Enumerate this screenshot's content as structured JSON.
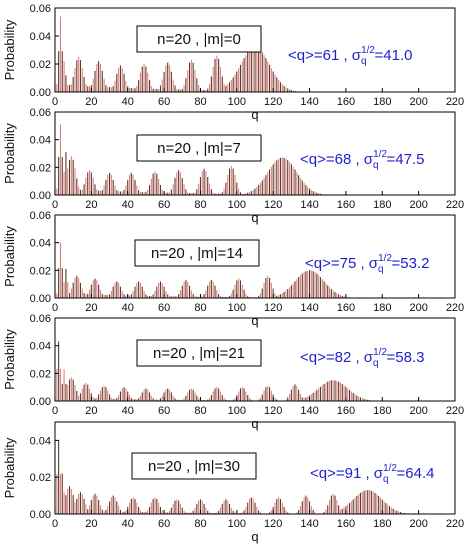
{
  "chart_data": [
    {
      "type": "bar",
      "ylabel": "Probability",
      "xlabel": "q",
      "label": "n=20 , |m|=0",
      "stat": {
        "mean_text": "<q>=61 , σ",
        "sigma_exp": "1/2",
        "sigma_sub": "q",
        "sigma_val": "=41.0"
      },
      "xlim": [
        0,
        220
      ],
      "ylim": [
        0,
        0.06
      ],
      "xticks": [
        "0",
        "20",
        "40",
        "60",
        "80",
        "100",
        "120",
        "140",
        "160",
        "180",
        "200",
        "220"
      ],
      "yticks": [
        "0.00",
        "0.02",
        "0.04",
        "0.06"
      ],
      "peaks": [
        {
          "q": 3,
          "p": 0.054
        },
        {
          "q": 5,
          "p": 0.022
        },
        {
          "q": 13,
          "p": 0.025
        },
        {
          "q": 24,
          "p": 0.022
        },
        {
          "q": 36,
          "p": 0.019
        },
        {
          "q": 49,
          "p": 0.02
        },
        {
          "q": 62,
          "p": 0.021
        },
        {
          "q": 75,
          "p": 0.023
        },
        {
          "q": 89,
          "p": 0.026
        },
        {
          "q": 110,
          "p": 0.032
        }
      ],
      "q_max": 150
    },
    {
      "type": "bar",
      "ylabel": "Probability",
      "xlabel": "q",
      "label": "n=20 , |m|=7",
      "stat": {
        "mean_text": "<q>=68 , σ",
        "sigma_exp": "1/2",
        "sigma_sub": "q",
        "sigma_val": "=47.5"
      },
      "xlim": [
        0,
        220
      ],
      "ylim": [
        0,
        0.06
      ],
      "xticks": [
        "0",
        "20",
        "40",
        "60",
        "80",
        "100",
        "120",
        "140",
        "160",
        "180",
        "200",
        "220"
      ],
      "yticks": [
        "0.00",
        "0.02",
        "0.04",
        "0.06"
      ],
      "peaks": [
        {
          "q": 3,
          "p": 0.051
        },
        {
          "q": 6,
          "p": 0.031
        },
        {
          "q": 9,
          "p": 0.028
        },
        {
          "q": 19,
          "p": 0.018
        },
        {
          "q": 30,
          "p": 0.016
        },
        {
          "q": 42,
          "p": 0.016
        },
        {
          "q": 55,
          "p": 0.017
        },
        {
          "q": 68,
          "p": 0.018
        },
        {
          "q": 82,
          "p": 0.019
        },
        {
          "q": 97,
          "p": 0.021
        },
        {
          "q": 125,
          "p": 0.027
        }
      ],
      "q_max": 165
    },
    {
      "type": "bar",
      "ylabel": "Probability",
      "xlabel": "q",
      "label": "n=20 , |m|=14",
      "stat": {
        "mean_text": "<q>=75 , σ",
        "sigma_exp": "1/2",
        "sigma_sub": "q",
        "sigma_val": "=53.2"
      },
      "xlim": [
        0,
        220
      ],
      "ylim": [
        0,
        0.06
      ],
      "xticks": [
        "0",
        "20",
        "40",
        "60",
        "80",
        "100",
        "120",
        "140",
        "160",
        "180",
        "200",
        "220"
      ],
      "yticks": [
        "0.00",
        "0.02",
        "0.04",
        "0.06"
      ],
      "peaks": [
        {
          "q": 3,
          "p": 0.04
        },
        {
          "q": 6,
          "p": 0.021
        },
        {
          "q": 12,
          "p": 0.016
        },
        {
          "q": 22,
          "p": 0.014
        },
        {
          "q": 34,
          "p": 0.012
        },
        {
          "q": 46,
          "p": 0.012
        },
        {
          "q": 58,
          "p": 0.012
        },
        {
          "q": 72,
          "p": 0.013
        },
        {
          "q": 86,
          "p": 0.013
        },
        {
          "q": 101,
          "p": 0.014
        },
        {
          "q": 117,
          "p": 0.016
        },
        {
          "q": 140,
          "p": 0.02
        }
      ],
      "q_max": 180
    },
    {
      "type": "bar",
      "ylabel": "Probability",
      "xlabel": "q",
      "label": "n=20 , |m|=21",
      "stat": {
        "mean_text": "<q>=82 , σ",
        "sigma_exp": "1/2",
        "sigma_sub": "q",
        "sigma_val": "=58.3"
      },
      "xlim": [
        0,
        220
      ],
      "ylim": [
        0,
        0.06
      ],
      "xticks": [
        "0",
        "20",
        "40",
        "60",
        "80",
        "100",
        "120",
        "140",
        "160",
        "180",
        "200",
        "220"
      ],
      "yticks": [
        "0.00",
        "0.02",
        "0.04",
        "0.06"
      ],
      "peaks": [
        {
          "q": 2,
          "p": 0.043
        },
        {
          "q": 5,
          "p": 0.023
        },
        {
          "q": 9,
          "p": 0.017
        },
        {
          "q": 17,
          "p": 0.013
        },
        {
          "q": 27,
          "p": 0.011
        },
        {
          "q": 38,
          "p": 0.01
        },
        {
          "q": 50,
          "p": 0.009
        },
        {
          "q": 62,
          "p": 0.009
        },
        {
          "q": 75,
          "p": 0.009
        },
        {
          "q": 89,
          "p": 0.01
        },
        {
          "q": 103,
          "p": 0.01
        },
        {
          "q": 117,
          "p": 0.011
        },
        {
          "q": 132,
          "p": 0.012
        },
        {
          "q": 153,
          "p": 0.015
        }
      ],
      "q_max": 195
    },
    {
      "type": "bar",
      "ylabel": "Probability",
      "xlabel": "q",
      "label": "n=20 , |m|=30",
      "stat": {
        "mean_text": "<q>=91 , σ",
        "sigma_exp": "1/2",
        "sigma_sub": "q",
        "sigma_val": "=64.4"
      },
      "xlim": [
        0,
        220
      ],
      "ylim": [
        0,
        0.05
      ],
      "xticks": [
        "0",
        "20",
        "40",
        "60",
        "80",
        "100",
        "120",
        "140",
        "160",
        "180",
        "200",
        "220"
      ],
      "yticks": [
        "0.00",
        "0.02",
        "0.04"
      ],
      "peaks": [
        {
          "q": 2,
          "p": 0.04
        },
        {
          "q": 4,
          "p": 0.022
        },
        {
          "q": 8,
          "p": 0.015
        },
        {
          "q": 14,
          "p": 0.012
        },
        {
          "q": 22,
          "p": 0.011
        },
        {
          "q": 32,
          "p": 0.01
        },
        {
          "q": 43,
          "p": 0.009
        },
        {
          "q": 55,
          "p": 0.009
        },
        {
          "q": 67,
          "p": 0.008
        },
        {
          "q": 80,
          "p": 0.008
        },
        {
          "q": 94,
          "p": 0.008
        },
        {
          "q": 108,
          "p": 0.009
        },
        {
          "q": 123,
          "p": 0.009
        },
        {
          "q": 138,
          "p": 0.01
        },
        {
          "q": 153,
          "p": 0.011
        },
        {
          "q": 172,
          "p": 0.013
        }
      ],
      "q_max": 210
    }
  ]
}
